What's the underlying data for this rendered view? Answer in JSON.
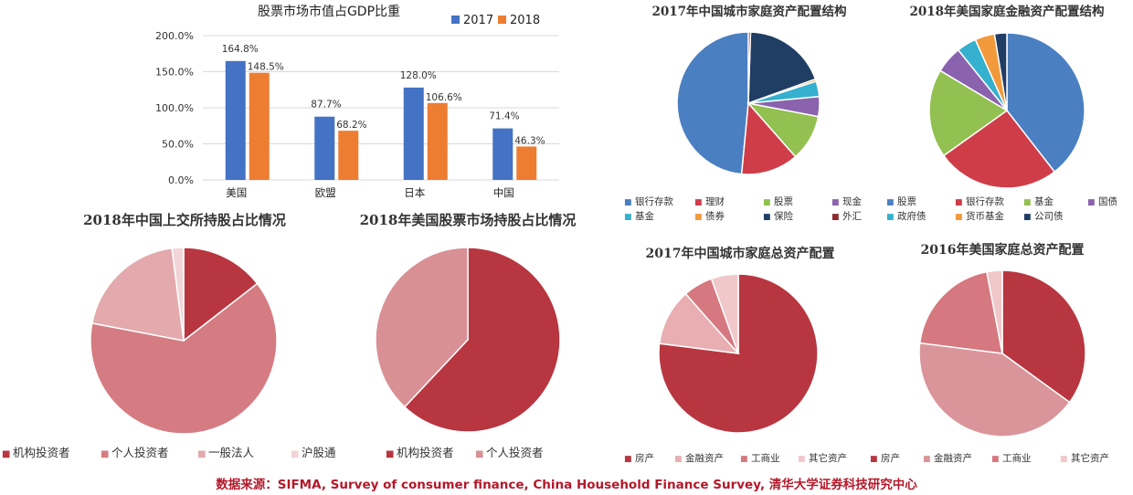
{
  "colors": {
    "bar_2017": "#4472c4",
    "bar_2018": "#ed7d31",
    "source_text": "#b4182a"
  },
  "source": "数据来源：SIFMA, Survey of consumer finance, China Household Finance Survey, 清华大学证券科技研究中心",
  "chart_data": [
    {
      "id": "gdp",
      "type": "bar",
      "title": "股票市场市值占GDP比重",
      "categories": [
        "美国",
        "欧盟",
        "日本",
        "中国"
      ],
      "series": [
        {
          "name": "2017",
          "color": "#4472c4",
          "values": [
            164.8,
            87.7,
            128.0,
            71.4
          ],
          "labels": [
            "164.8%",
            "87.7%",
            "128.0%",
            "71.4%"
          ]
        },
        {
          "name": "2018",
          "color": "#ed7d31",
          "values": [
            148.5,
            68.2,
            106.6,
            46.3
          ],
          "labels": [
            "148.5%",
            "68.2%",
            "106.6%",
            "46.3%"
          ]
        }
      ],
      "ylim": [
        0,
        200
      ],
      "yticks": [
        "0.0%",
        "50.0%",
        "100.0%",
        "150.0%",
        "200.0%"
      ],
      "legend": "top-right"
    },
    {
      "id": "cn-fin",
      "type": "pie",
      "title": "2017年中国城市家庭资产配置结构",
      "categories": [
        "银行存款",
        "理财",
        "股票",
        "现金",
        "基金",
        "债券",
        "保险",
        "外汇"
      ],
      "values": [
        48.5,
        13.0,
        10.5,
        4.5,
        3.5,
        0.5,
        19.0,
        0.5
      ],
      "colors": [
        "#4a7fc1",
        "#cf3d48",
        "#92c051",
        "#8a62ad",
        "#35b0cf",
        "#f2993c",
        "#203d63",
        "#8c2b2f"
      ]
    },
    {
      "id": "us-fin",
      "type": "pie",
      "title": "2018年美国家庭金融资产配置结构",
      "categories": [
        "股票",
        "银行存款",
        "基金",
        "国债",
        "政府债",
        "货币基金",
        "公司债"
      ],
      "values": [
        38.5,
        25.0,
        18.0,
        5.5,
        4.0,
        4.0,
        2.5
      ],
      "colors": [
        "#4a7fc1",
        "#cf3d48",
        "#92c051",
        "#8a62ad",
        "#35b0cf",
        "#f2993c",
        "#203d63"
      ]
    },
    {
      "id": "sse",
      "type": "pie",
      "title": "2018年中国上交所持股占比情况",
      "categories": [
        "机构投资者",
        "个人投资者",
        "一般法人",
        "沪股通"
      ],
      "values": [
        14.5,
        63.5,
        20.0,
        2.0
      ],
      "colors": [
        "#b83640",
        "#d57c83",
        "#e3a9ac",
        "#f1d5d6"
      ]
    },
    {
      "id": "us-stock",
      "type": "pie",
      "title": "2018年美国股票市场持股占比情况",
      "categories": [
        "机构投资者",
        "个人投资者"
      ],
      "values": [
        62.0,
        38.0
      ],
      "colors": [
        "#b83640",
        "#d99095"
      ]
    },
    {
      "id": "cn-total",
      "type": "pie",
      "title": "2017年中国城市家庭总资产配置",
      "categories": [
        "房产",
        "金融资产",
        "工商业",
        "其它资产"
      ],
      "values": [
        77.0,
        11.5,
        6.0,
        5.5
      ],
      "colors": [
        "#b83640",
        "#e8aeb2",
        "#d67880",
        "#f1c8ca"
      ]
    },
    {
      "id": "us-total",
      "type": "pie",
      "title": "2016年美国家庭总资产配置",
      "categories": [
        "房产",
        "金融资产",
        "工商业",
        "其它资产"
      ],
      "values": [
        35.0,
        42.0,
        20.0,
        3.0
      ],
      "colors": [
        "#b83640",
        "#da959a",
        "#d67880",
        "#f1c8ca"
      ]
    }
  ]
}
